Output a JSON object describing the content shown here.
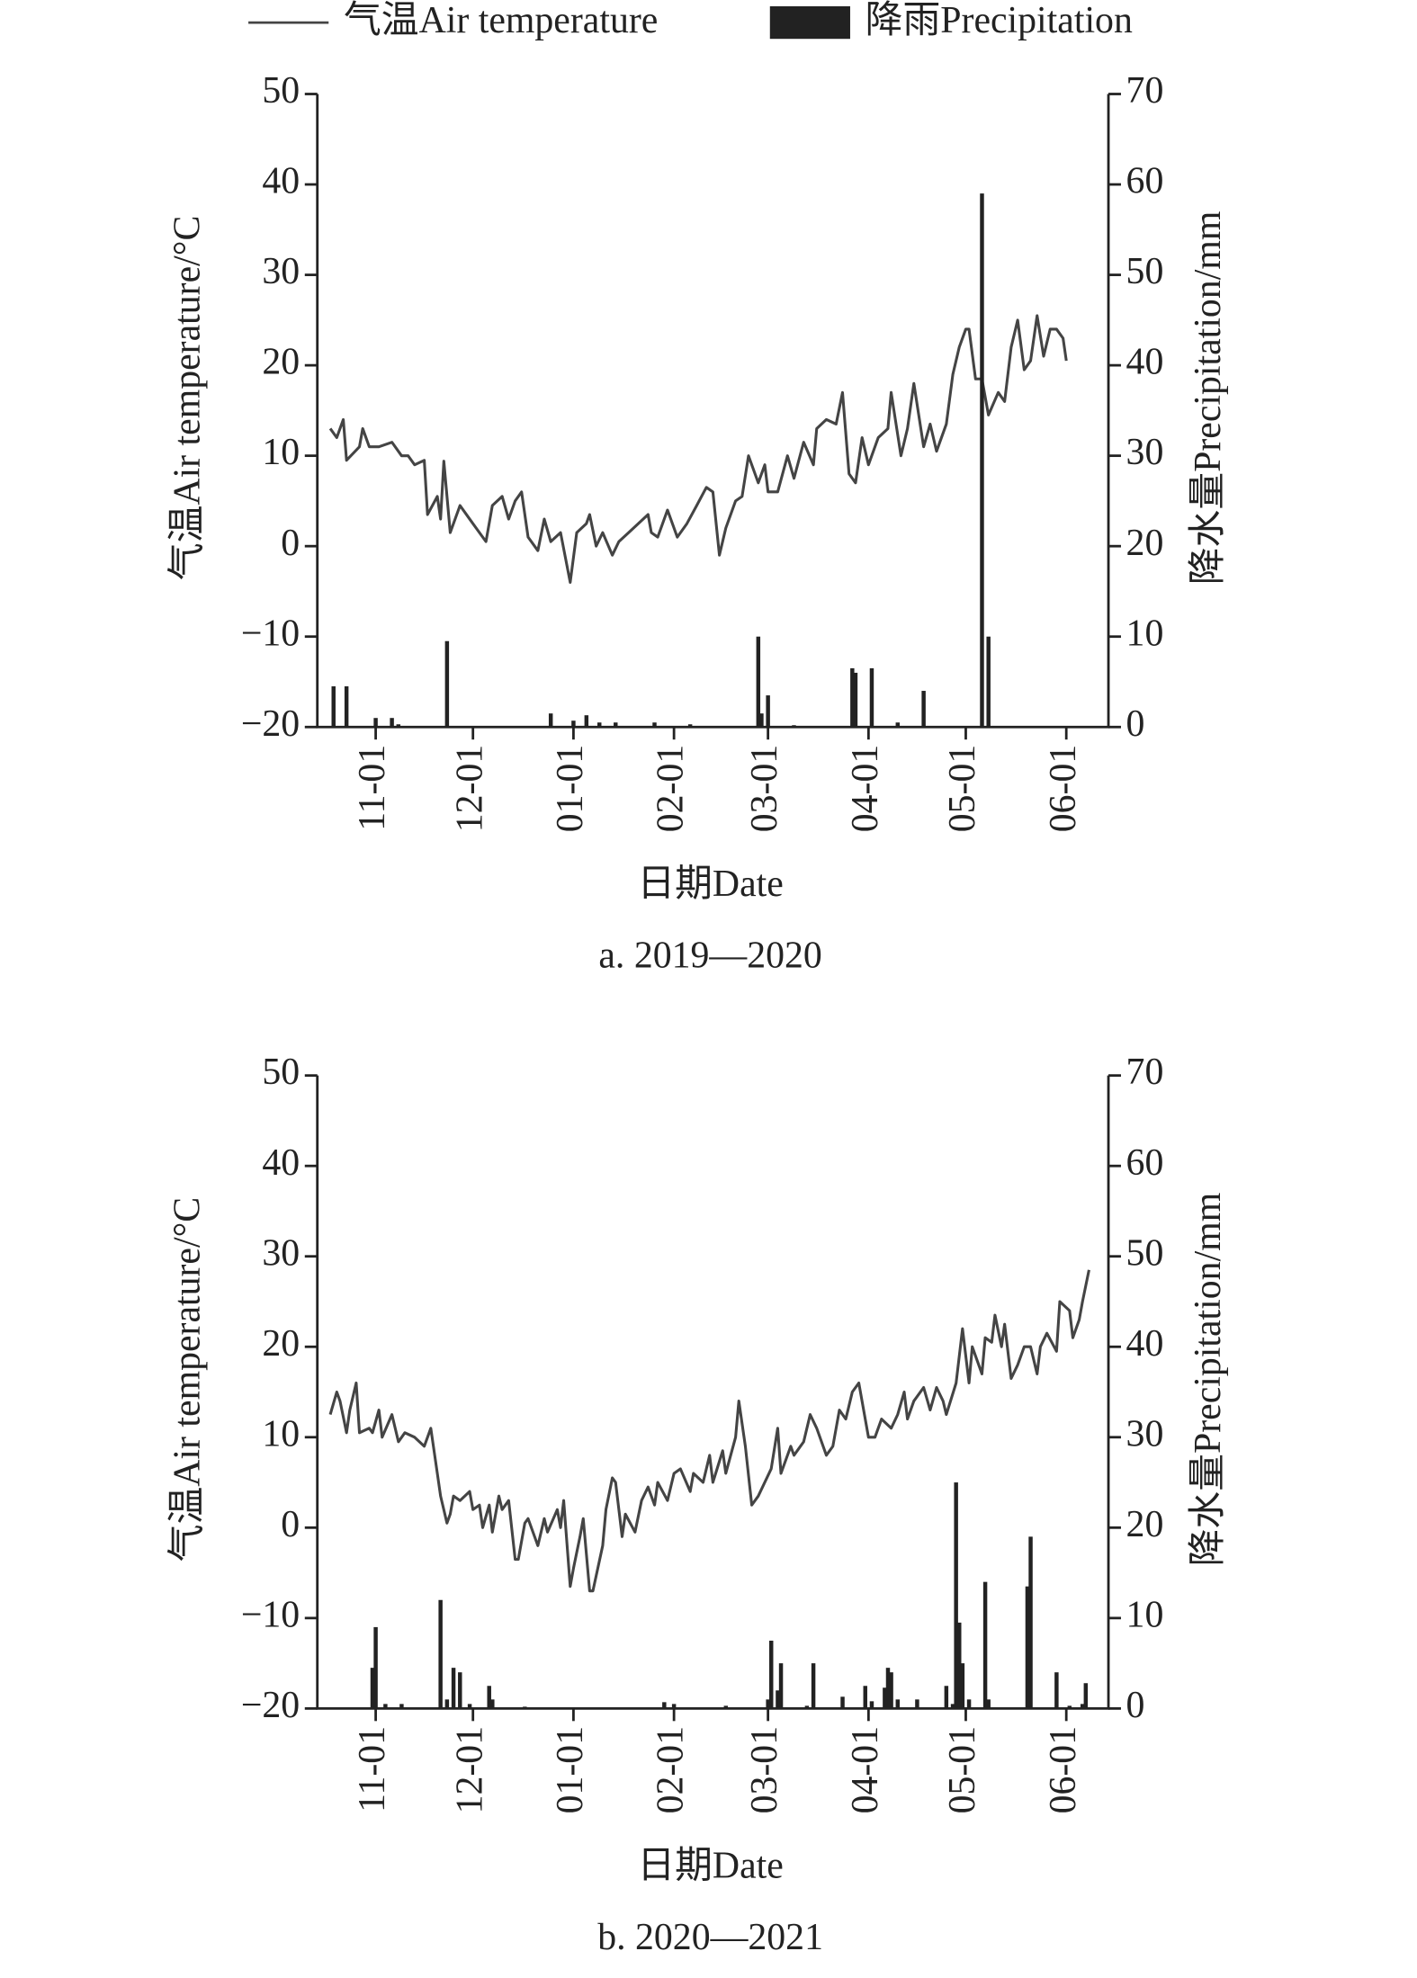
{
  "chart_data": [
    {
      "type": "combo",
      "caption": "a. 2019—2020",
      "xlabel": "日期Date",
      "ylabel": "气温Air temperature/°C",
      "y2label": "降水量Precipitation/mm",
      "xlim": [
        "10-14",
        "06-14"
      ],
      "xticks": [
        "11-01",
        "12-01",
        "01-01",
        "02-01",
        "03-01",
        "04-01",
        "05-01",
        "06-01"
      ],
      "ylim": [
        -20,
        50
      ],
      "yticks": [
        {
          "value": -20,
          "label": "−20"
        },
        {
          "value": -10,
          "label": "−10"
        },
        0,
        10,
        20,
        30,
        40,
        50
      ],
      "y2lim": [
        0,
        70
      ],
      "y2ticks": [
        0,
        10,
        20,
        30,
        40,
        50,
        60,
        70
      ],
      "series": [
        {
          "name": "气温Air temperature",
          "kind": "line",
          "color": "#444444",
          "x": [
            "10-18",
            "10-20",
            "10-22",
            "10-23",
            "10-27",
            "10-28",
            "10-30",
            "11-02",
            "11-06",
            "11-09",
            "11-11",
            "11-13",
            "11-16",
            "11-17",
            "11-20",
            "11-21",
            "11-22",
            "11-24",
            "11-27",
            "11-30",
            "12-02",
            "12-05",
            "12-07",
            "12-10",
            "12-12",
            "12-14",
            "12-16",
            "12-18",
            "12-21",
            "12-23",
            "12-25",
            "12-28",
            "12-31",
            "01-02",
            "01-05",
            "01-06",
            "01-08",
            "01-10",
            "01-13",
            "01-15",
            "01-18",
            "01-21",
            "01-24",
            "01-25",
            "01-27",
            "01-30",
            "02-02",
            "02-05",
            "02-08",
            "02-11",
            "02-13",
            "02-15",
            "02-17",
            "02-20",
            "02-22",
            "02-24",
            "02-27",
            "02-29",
            "03-01",
            "03-04",
            "03-07",
            "03-09",
            "03-12",
            "03-15",
            "03-16",
            "03-19",
            "03-22",
            "03-24",
            "03-26",
            "03-28",
            "03-30",
            "04-01",
            "04-04",
            "04-07",
            "04-08",
            "04-11",
            "04-13",
            "04-15",
            "04-18",
            "04-20",
            "04-22",
            "04-25",
            "04-27",
            "04-29",
            "05-01",
            "05-02",
            "05-04",
            "05-06",
            "05-08",
            "05-11",
            "05-13",
            "05-15",
            "05-17",
            "05-19",
            "05-21",
            "05-23",
            "05-25",
            "05-27",
            "05-29",
            "05-31",
            "06-01"
          ],
          "values": [
            13,
            12,
            14,
            9.5,
            11,
            13,
            11,
            11,
            11.5,
            10,
            10,
            9,
            9.5,
            3.5,
            5.5,
            3,
            9.4,
            1.5,
            4.5,
            3,
            2,
            0.5,
            4.5,
            5.5,
            3,
            5,
            6,
            1,
            -0.5,
            3,
            0.5,
            1.5,
            -4,
            1.5,
            2.5,
            3.5,
            0,
            1.5,
            -1,
            0.5,
            1.5,
            2.5,
            3.5,
            1.5,
            1,
            4,
            1,
            2.5,
            4.5,
            6.5,
            6,
            -1,
            2,
            5,
            5.5,
            10,
            7,
            9,
            6,
            6,
            10,
            7.5,
            11.5,
            9,
            13,
            14,
            13.5,
            17,
            8,
            7,
            12,
            9,
            12,
            13,
            17,
            10,
            13,
            18,
            11,
            13.5,
            10.5,
            13.5,
            19,
            22,
            24,
            24,
            18.5,
            18.5,
            14.5,
            17,
            16,
            22,
            25,
            19.5,
            20.5,
            25.5,
            21,
            24,
            24,
            23,
            20.5
          ]
        },
        {
          "name": "降雨Precipitation",
          "kind": "bar",
          "axis": "y2",
          "color": "#222222",
          "x": [
            "10-19",
            "10-23",
            "11-01",
            "11-06",
            "11-08",
            "11-23",
            "12-25",
            "01-01",
            "01-05",
            "01-09",
            "01-14",
            "01-26",
            "02-06",
            "02-27",
            "02-28",
            "03-01",
            "03-09",
            "03-27",
            "03-28",
            "04-02",
            "04-10",
            "04-18",
            "05-06",
            "05-08"
          ],
          "values": [
            4.5,
            4.5,
            1,
            1,
            0.3,
            9.5,
            1.5,
            0.7,
            1.3,
            0.5,
            0.5,
            0.5,
            0.3,
            10,
            1.5,
            3.5,
            0.2,
            6.5,
            6,
            6.5,
            0.5,
            4,
            59,
            10
          ]
        }
      ]
    },
    {
      "type": "combo",
      "caption": "b. 2020—2021",
      "xlabel": "日期Date",
      "ylabel": "气温Air temperature/°C",
      "y2label": "降水量Precipitation/mm",
      "xlim": [
        "10-14",
        "06-14"
      ],
      "xticks": [
        "11-01",
        "12-01",
        "01-01",
        "02-01",
        "03-01",
        "04-01",
        "05-01",
        "06-01"
      ],
      "ylim": [
        -20,
        50
      ],
      "yticks": [
        {
          "value": -20,
          "label": "−20"
        },
        {
          "value": -10,
          "label": "−10"
        },
        0,
        10,
        20,
        30,
        40,
        50
      ],
      "y2lim": [
        0,
        70
      ],
      "y2ticks": [
        0,
        10,
        20,
        30,
        40,
        50,
        60,
        70
      ],
      "series": [
        {
          "kind": "line",
          "color": "#444444",
          "x": [
            "10-18",
            "10-20",
            "10-21",
            "10-23",
            "10-24",
            "10-26",
            "10-27",
            "10-30",
            "10-31",
            "11-02",
            "11-03",
            "11-06",
            "11-08",
            "11-10",
            "11-13",
            "11-16",
            "11-18",
            "11-20",
            "11-21",
            "11-23",
            "11-24",
            "11-25",
            "11-27",
            "11-30",
            "12-01",
            "12-03",
            "12-04",
            "12-06",
            "12-07",
            "12-09",
            "12-10",
            "12-12",
            "12-14",
            "12-15",
            "12-17",
            "12-18",
            "12-21",
            "12-23",
            "12-24",
            "12-27",
            "12-28",
            "12-29",
            "12-31",
            "01-01",
            "01-03",
            "01-04",
            "01-06",
            "01-07",
            "01-10",
            "01-11",
            "01-13",
            "01-14",
            "01-16",
            "01-17",
            "01-20",
            "01-22",
            "01-24",
            "01-26",
            "01-27",
            "01-30",
            "02-01",
            "02-03",
            "02-06",
            "02-07",
            "02-10",
            "02-12",
            "02-13",
            "02-16",
            "02-17",
            "02-20",
            "02-21",
            "02-23",
            "02-25",
            "02-27",
            "03-02",
            "03-04",
            "03-05",
            "03-08",
            "03-09",
            "03-12",
            "03-14",
            "03-16",
            "03-19",
            "03-21",
            "03-23",
            "03-25",
            "03-27",
            "03-29",
            "04-01",
            "04-03",
            "04-05",
            "04-08",
            "04-10",
            "04-12",
            "04-13",
            "04-15",
            "04-18",
            "04-20",
            "04-22",
            "04-24",
            "04-25",
            "04-28",
            "04-30",
            "05-02",
            "05-03",
            "05-06",
            "05-07",
            "05-09",
            "05-10",
            "05-12",
            "05-13",
            "05-15",
            "05-17",
            "05-19",
            "05-21",
            "05-23",
            "05-24",
            "05-26",
            "05-29",
            "05-30",
            "06-02",
            "06-03",
            "06-05",
            "06-06",
            "06-08"
          ],
          "values": [
            12.5,
            15,
            14,
            10.5,
            13,
            16,
            10.5,
            11,
            10.5,
            13,
            10,
            12.5,
            9.5,
            10.5,
            10,
            9,
            11,
            6,
            3.5,
            0.5,
            1.5,
            3.5,
            3,
            4,
            2,
            2.5,
            0,
            2.5,
            -0.5,
            3.5,
            2,
            3,
            -3.5,
            -3.5,
            0.5,
            1,
            -2,
            1,
            -0.5,
            2,
            0,
            3,
            -6.5,
            -4.5,
            -1,
            1,
            -7,
            -7,
            -2,
            2,
            5.5,
            5,
            -1,
            1.5,
            -0.5,
            3,
            4.5,
            2.5,
            5,
            3,
            6,
            6.5,
            4,
            6,
            5,
            8,
            5,
            8.5,
            6,
            10,
            14,
            9,
            2.5,
            3.5,
            6.5,
            11,
            6,
            9,
            8,
            9.5,
            12.5,
            11,
            8,
            9,
            13,
            12,
            15,
            16,
            10,
            10,
            12,
            11,
            12.5,
            15,
            12,
            14,
            15.5,
            13,
            15.5,
            14,
            12.5,
            16,
            22,
            16,
            20,
            17,
            21,
            20.5,
            23.5,
            20,
            22.5,
            16.5,
            18,
            20,
            20,
            17,
            20,
            21.5,
            19.5,
            25,
            24,
            21,
            23,
            25,
            28.5
          ]
        },
        {
          "kind": "bar",
          "axis": "y2",
          "color": "#222222",
          "x": [
            "10-31",
            "11-01",
            "11-04",
            "11-09",
            "11-21",
            "11-23",
            "11-25",
            "11-27",
            "11-30",
            "12-06",
            "12-07",
            "12-17",
            "01-29",
            "02-01",
            "02-17",
            "03-01",
            "03-02",
            "03-04",
            "03-05",
            "03-13",
            "03-15",
            "03-24",
            "03-31",
            "04-02",
            "04-06",
            "04-07",
            "04-08",
            "04-10",
            "04-16",
            "04-25",
            "04-27",
            "04-28",
            "04-29",
            "04-30",
            "05-02",
            "05-07",
            "05-08",
            "05-20",
            "05-21",
            "05-29",
            "06-02",
            "06-06",
            "06-07"
          ],
          "values": [
            4.5,
            9,
            0.5,
            0.5,
            12,
            1,
            4.5,
            4,
            0.5,
            2.5,
            1,
            0.2,
            0.7,
            0.5,
            0.3,
            1,
            7.5,
            2,
            5,
            0.3,
            5,
            1.3,
            2.5,
            0.8,
            2.3,
            4.5,
            4,
            1,
            1,
            2.5,
            0.5,
            25,
            9.5,
            5,
            1,
            14,
            1,
            13.5,
            19,
            4,
            0.3,
            0.5,
            2.8
          ]
        }
      ]
    }
  ]
}
